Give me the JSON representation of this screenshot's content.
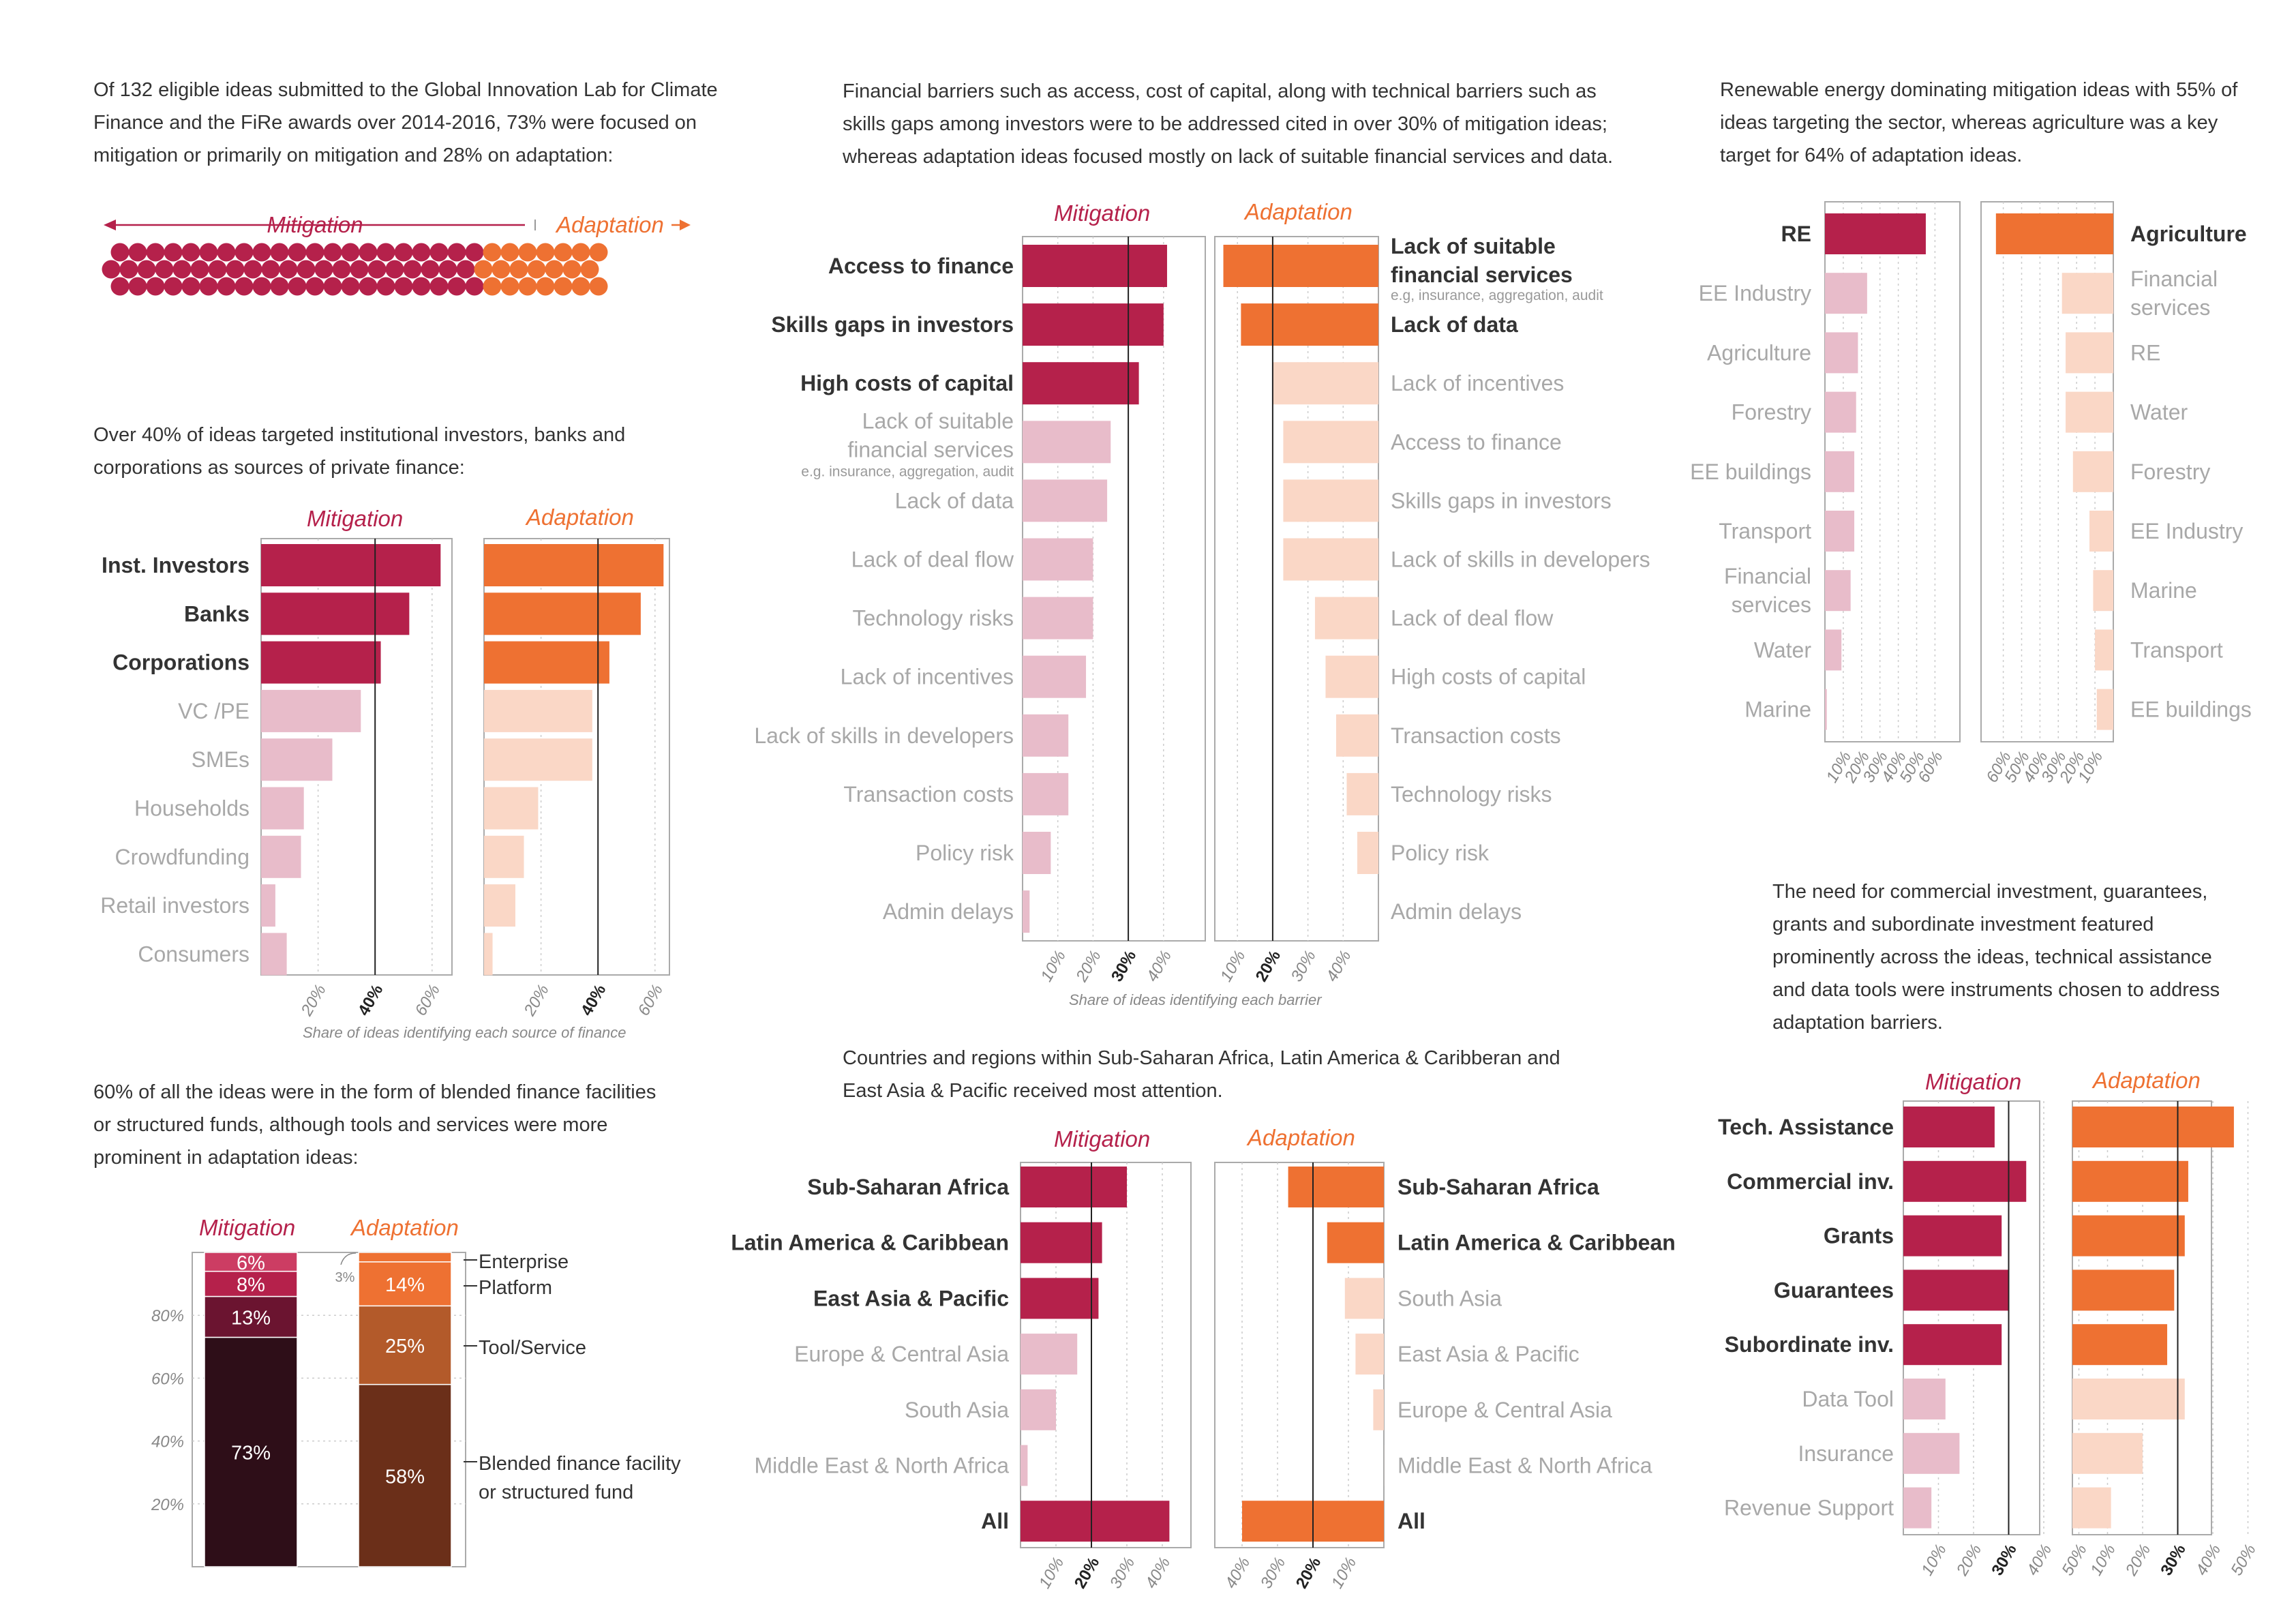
{
  "colors": {
    "mitigation": "#b5214b",
    "mitigation_light": "#e8bcca",
    "adaptation": "#ee7132",
    "adaptation_light": "#fad7c6",
    "dark_maroon": "#2e0e18",
    "mid_maroon": "#6b1430",
    "dark_brown": "#6b2f19",
    "mid_brown": "#b35a2a"
  },
  "titles": {
    "mitigation": "Mitigation",
    "adaptation": "Adaptation"
  },
  "intro": {
    "dots": "Of 132 eligible ideas submitted to the Global Innovation Lab for Climate Finance and the FiRe awards over 2014-2016, 73% were focused on mitigation or primarily on mitigation and 28% on adaptation:",
    "sources": "Over 40% of ideas targeted institutional investors, banks and corporations as sources of private finance:",
    "types": "60% of all the ideas were in the form of blended finance facilities or structured funds, although tools and services were more prominent in adaptation ideas:",
    "barriers": "Financial barriers such as access, cost of capital, along with technical barriers such as skills gaps among investors were to be addressed cited in over 30% of mitigation ideas; whereas adaptation ideas focused mostly on lack of suitable financial services and data.",
    "regions": "Countries and regions within Sub-Saharan Africa, Latin America & Caribberan and East Asia & Pacific received most attention.",
    "sectors": "Renewable energy dominating mitigation ideas with 55% of ideas targeting the sector, whereas agriculture was a key target for 64% of adaptation ideas.",
    "instruments": "The need for commercial investment, guarantees, grants and subordinate investment featured prominently across the ideas, technical assistance and data tools were instruments chosen to address adaptation barriers."
  },
  "notes": {
    "sources_axis": "Share of ideas identifying each source of finance",
    "barriers_axis": "Share of ideas identifying each barrier"
  },
  "chart_data": [
    {
      "id": "split",
      "type": "bar",
      "series": [
        {
          "name": "Mitigation",
          "values": [
            73
          ]
        },
        {
          "name": "Adaptation",
          "values": [
            28
          ]
        }
      ],
      "unit": "%"
    },
    {
      "id": "sources",
      "type": "bar",
      "orientation": "horizontal",
      "categories": [
        "Inst. Investors",
        "Banks",
        "Corporations",
        "VC /PE",
        "SMEs",
        "Households",
        "Crowdfunding",
        "Retail investors",
        "Consumers"
      ],
      "highlighted": 3,
      "series": [
        {
          "name": "Mitigation",
          "values": [
            63,
            52,
            42,
            35,
            25,
            15,
            14,
            5,
            9
          ]
        },
        {
          "name": "Adaptation",
          "values": [
            63,
            55,
            44,
            38,
            38,
            19,
            14,
            11,
            3
          ]
        }
      ],
      "xlim": [
        0,
        70
      ],
      "ticks": [
        "20%",
        "40%",
        "60%"
      ],
      "reference": 40
    },
    {
      "id": "types",
      "type": "bar",
      "stacked": true,
      "categories": [
        "Mitigation",
        "Adaptation"
      ],
      "layers": [
        "Blended finance facility or structured fund",
        "Tool/Service",
        "Platform",
        "Enterprise"
      ],
      "series": [
        {
          "name": "Blended finance facility or structured fund",
          "values": [
            73,
            58
          ],
          "labels": [
            "73%",
            "58%"
          ]
        },
        {
          "name": "Tool/Service",
          "values": [
            13,
            25
          ],
          "labels": [
            "13%",
            "25%"
          ]
        },
        {
          "name": "Platform",
          "values": [
            8,
            14
          ],
          "labels": [
            "8%",
            "14%"
          ]
        },
        {
          "name": "Enterprise",
          "values": [
            6,
            3
          ],
          "labels": [
            "6%",
            "3%"
          ]
        }
      ],
      "ticks": [
        "20%",
        "40%",
        "60%",
        "80%"
      ],
      "ylim": [
        0,
        100
      ]
    },
    {
      "id": "barriers",
      "type": "bar",
      "orientation": "horizontal",
      "mitigation_categories": [
        "Access to finance",
        "Skills gaps in investors",
        "High costs of capital",
        "Lack of suitable financial services",
        "Lack of data",
        "Lack of deal flow",
        "Technology risks",
        "Lack of incentives",
        "Lack of skills in developers",
        "Transaction costs",
        "Policy risk",
        "Admin delays"
      ],
      "mitigation_subnote": "e.g. insurance, aggregation, audit",
      "mitigation_highlighted": 3,
      "adaptation_categories": [
        "Lack of suitable financial services",
        "Lack of data",
        "Lack of incentives",
        "Access to finance",
        "Skills gaps in investors",
        "Lack of skills in developers",
        "Lack of deal flow",
        "High costs of capital",
        "Transaction costs",
        "Technology risks",
        "Policy risk",
        "Admin delays"
      ],
      "adaptation_subnote": "e.g, insurance, aggregation, audit",
      "adaptation_highlighted": 2,
      "series": [
        {
          "name": "Mitigation",
          "values": [
            41,
            40,
            33,
            25,
            24,
            20,
            20,
            18,
            13,
            13,
            8,
            2
          ]
        },
        {
          "name": "Adaptation",
          "values": [
            44,
            39,
            30,
            27,
            27,
            27,
            18,
            15,
            12,
            9,
            6,
            0
          ]
        }
      ],
      "xlim": [
        0,
        45
      ],
      "ticks": [
        "10%",
        "20%",
        "30%",
        "40%"
      ],
      "reference": 30
    },
    {
      "id": "regions",
      "type": "bar",
      "orientation": "horizontal",
      "categories": [
        "Sub-Saharan Africa",
        "Latin America & Caribbean",
        "East Asia & Pacific",
        "Europe & Central Asia",
        "South Asia",
        "Middle East & North Africa",
        "All"
      ],
      "mitigation_highlighted": [
        0,
        1,
        2,
        6
      ],
      "adaptation_highlighted": [
        0,
        1,
        6
      ],
      "adaptation_categories": [
        "Sub-Saharan Africa",
        "Latin America & Caribbean",
        "South Asia",
        "East Asia & Pacific",
        "Europe & Central Asia",
        "Middle East & North Africa",
        "All"
      ],
      "series": [
        {
          "name": "Mitigation",
          "values": [
            30,
            23,
            22,
            16,
            10,
            2,
            42
          ]
        },
        {
          "name": "Adaptation",
          "values": [
            27,
            16,
            11,
            8,
            3,
            0,
            40
          ]
        }
      ],
      "xlim": [
        0,
        48
      ],
      "ticks": [
        "10%",
        "20%",
        "30%",
        "40%"
      ],
      "reference": 20
    },
    {
      "id": "sectors",
      "type": "bar",
      "orientation": "horizontal",
      "mitigation_categories": [
        "RE",
        "EE Industry",
        "Agriculture",
        "Forestry",
        "EE buildings",
        "Transport",
        "Financial services",
        "Water",
        "Marine"
      ],
      "adaptation_categories": [
        "Agriculture",
        "Financial services",
        "RE",
        "Water",
        "Forestry",
        "EE Industry",
        "Marine",
        "Transport",
        "EE buildings"
      ],
      "series": [
        {
          "name": "Mitigation",
          "values": [
            55,
            23,
            18,
            17,
            16,
            16,
            14,
            9,
            1
          ]
        },
        {
          "name": "Adaptation",
          "values": [
            64,
            28,
            26,
            26,
            22,
            13,
            11,
            10,
            9
          ]
        }
      ],
      "xlim": [
        0,
        70
      ],
      "ticks": [
        "10%",
        "20%",
        "30%",
        "40%",
        "50%",
        "60%"
      ]
    },
    {
      "id": "instruments",
      "type": "bar",
      "orientation": "horizontal",
      "categories": [
        "Tech. Assistance",
        "Commercial inv.",
        "Grants",
        "Guarantees",
        "Subordinate inv.",
        "Data Tool",
        "Insurance",
        "Revenue Support"
      ],
      "highlighted": 5,
      "series": [
        {
          "name": "Mitigation",
          "values": [
            26,
            35,
            28,
            30,
            28,
            12,
            16,
            8
          ]
        },
        {
          "name": "Adaptation",
          "values": [
            46,
            33,
            32,
            29,
            27,
            32,
            20,
            11
          ]
        }
      ],
      "xlim": [
        0,
        48
      ],
      "ticks": [
        "10%",
        "20%",
        "30%",
        "40%",
        "50%"
      ],
      "reference": 30
    }
  ]
}
